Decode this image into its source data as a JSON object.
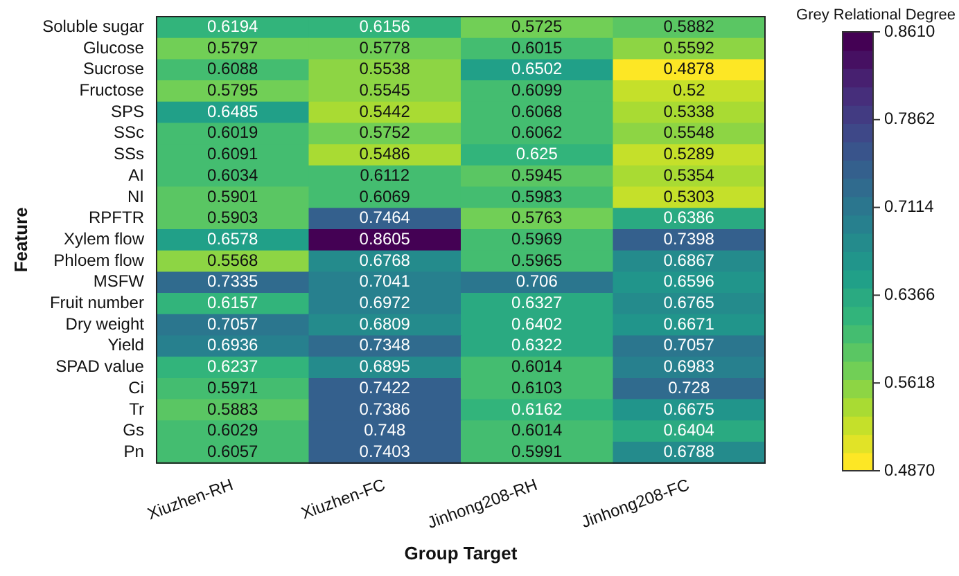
{
  "chart_data": {
    "type": "heatmap",
    "xlabel": "Group Target",
    "ylabel": "Feature",
    "clabel": "Grey Relational Degree",
    "categories": [
      "Xiuzhen-RH",
      "Xiuzhen-FC",
      "Jinhong208-RH",
      "Jinhong208-FC"
    ],
    "y_categories": [
      "Soluble sugar",
      "Glucose",
      "Sucrose",
      "Fructose",
      "SPS",
      "SSc",
      "SSs",
      "AI",
      "NI",
      "RPFTR",
      "Xylem flow",
      "Phloem flow",
      "MSFW",
      "Fruit number",
      "Dry weight",
      "Yield",
      "SPAD value",
      "Ci",
      "Tr",
      "Gs",
      "Pn"
    ],
    "cells": [
      [
        0.6194,
        0.6156,
        0.5725,
        0.5882
      ],
      [
        0.5797,
        0.5778,
        0.6015,
        0.5592
      ],
      [
        0.6088,
        0.5538,
        0.6502,
        0.4878
      ],
      [
        0.5795,
        0.5545,
        0.6099,
        0.52
      ],
      [
        0.6485,
        0.5442,
        0.6068,
        0.5338
      ],
      [
        0.6019,
        0.5752,
        0.6062,
        0.5548
      ],
      [
        0.6091,
        0.5486,
        0.625,
        0.5289
      ],
      [
        0.6034,
        0.6112,
        0.5945,
        0.5354
      ],
      [
        0.5901,
        0.6069,
        0.5983,
        0.5303
      ],
      [
        0.5903,
        0.7464,
        0.5763,
        0.6386
      ],
      [
        0.6578,
        0.8605,
        0.5969,
        0.7398
      ],
      [
        0.5568,
        0.6768,
        0.5965,
        0.6867
      ],
      [
        0.7335,
        0.7041,
        0.706,
        0.6596
      ],
      [
        0.6157,
        0.6972,
        0.6327,
        0.6765
      ],
      [
        0.7057,
        0.6809,
        0.6402,
        0.6671
      ],
      [
        0.6936,
        0.7348,
        0.6322,
        0.7057
      ],
      [
        0.6237,
        0.6895,
        0.6014,
        0.6983
      ],
      [
        0.5971,
        0.7422,
        0.6103,
        0.728
      ],
      [
        0.5883,
        0.7386,
        0.6162,
        0.6675
      ],
      [
        0.6029,
        0.748,
        0.6014,
        0.6404
      ],
      [
        0.6057,
        0.7403,
        0.5991,
        0.6788
      ]
    ],
    "clim": [
      0.487,
      0.861
    ],
    "cticks": [
      {
        "value": 0.487,
        "label": "0.4870"
      },
      {
        "value": 0.5618,
        "label": "0.5618"
      },
      {
        "value": 0.6366,
        "label": "0.6366"
      },
      {
        "value": 0.7114,
        "label": "0.7114"
      },
      {
        "value": 0.7862,
        "label": "0.7862"
      },
      {
        "value": 0.861,
        "label": "0.8610"
      }
    ],
    "data_labels": true
  }
}
